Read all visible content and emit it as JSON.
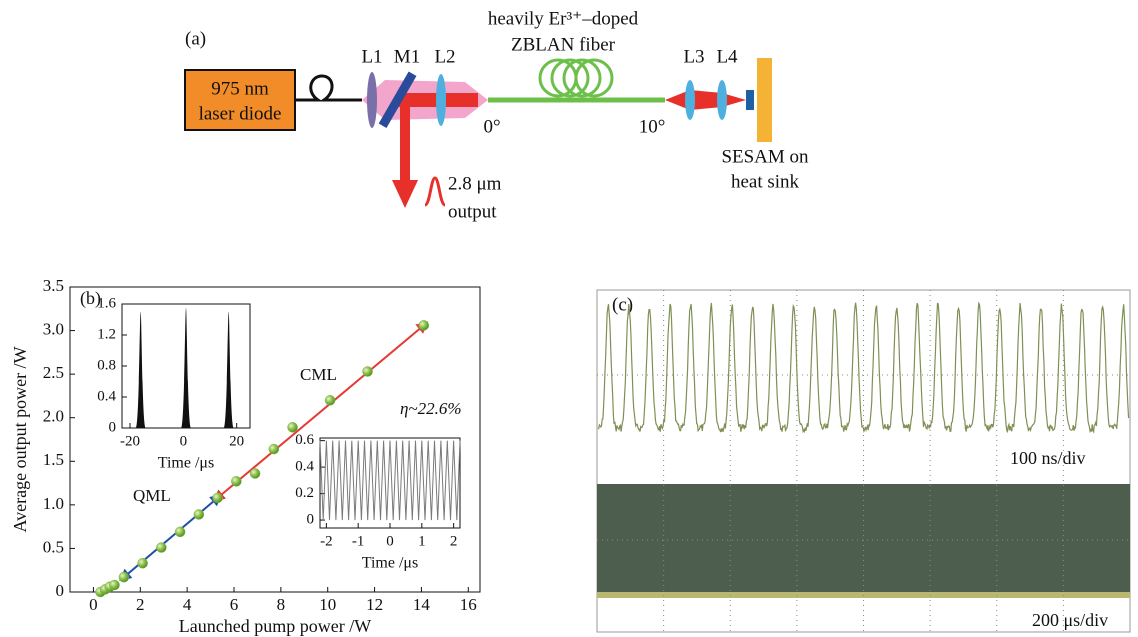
{
  "diagram": {
    "panel": "(a)",
    "source": [
      "975 nm",
      "laser diode"
    ],
    "lenses": [
      "L1",
      "M1",
      "L2",
      "L3",
      "L4"
    ],
    "fiber": [
      "heavily Er³⁺–doped",
      "ZBLAN fiber"
    ],
    "angles": [
      "0°",
      "10°"
    ],
    "output": [
      "2.8 μm",
      "output"
    ],
    "sesam": [
      "SESAM on",
      "heat sink"
    ]
  },
  "chart_data": [
    {
      "type": "scatter",
      "panel": "(b)",
      "x_label": "Launched pump power /W",
      "y_label": "Average output power /W",
      "annotations": [
        "CML",
        "QML",
        "η~22.6%"
      ],
      "x": [
        0.3,
        0.5,
        0.7,
        0.9,
        1.3,
        2.1,
        2.9,
        3.7,
        4.5,
        5.3,
        6.1,
        6.9,
        7.7,
        8.5,
        10.1,
        11.7,
        14.1
      ],
      "values": [
        0.0,
        0.03,
        0.06,
        0.08,
        0.17,
        0.33,
        0.51,
        0.69,
        0.89,
        1.08,
        1.27,
        1.36,
        1.64,
        1.89,
        2.2,
        2.53,
        3.06
      ],
      "color": "#7cb342",
      "fit_colors": [
        "#1f4fa8",
        "#e53935"
      ],
      "xlim": [
        -1,
        16.5
      ],
      "xticks": [
        0,
        2,
        4,
        6,
        8,
        10,
        12,
        14,
        16
      ],
      "ylim": [
        0,
        3.5
      ],
      "yticks": [
        0,
        0.5,
        {
          "value": 1,
          "label": "1.0"
        },
        1.5,
        {
          "value": 2,
          "label": "2.0"
        },
        2.5,
        {
          "value": 3,
          "label": "3.0"
        },
        3.5
      ]
    },
    {
      "type": "pulses",
      "x_label": "Time /μs",
      "x": [
        -16,
        1,
        17
      ],
      "values": [
        1.5,
        1.55,
        1.5
      ],
      "color": "#111111",
      "xlim": [
        -23,
        25
      ],
      "xticks": [
        -20,
        0,
        20
      ],
      "ylim": [
        0,
        1.6
      ],
      "yticks": [
        0,
        0.4,
        0.8,
        1.2,
        1.6
      ]
    },
    {
      "type": "line",
      "x_label": "Time /μs",
      "color": "#7a7a7a",
      "x": [
        -2.2,
        -2.1,
        -2.0,
        -1.9,
        -1.8,
        -1.7,
        -1.6,
        -1.5,
        -1.4,
        -1.3,
        -1.2,
        -1.1,
        -1.0,
        -0.9,
        -0.8,
        -0.7,
        -0.6,
        -0.5,
        -0.4,
        -0.3,
        -0.2,
        -0.1,
        0.0,
        0.1,
        0.2,
        0.3,
        0.4,
        0.5,
        0.6,
        0.7,
        0.8,
        0.9,
        1.0,
        1.1,
        1.2,
        1.3,
        1.4,
        1.5,
        1.6,
        1.7,
        1.8,
        1.9,
        2.0,
        2.1,
        2.2
      ],
      "values": [
        0.6,
        0.0,
        0.6,
        0.0,
        0.6,
        0.0,
        0.6,
        0.0,
        0.6,
        0.0,
        0.6,
        0.0,
        0.6,
        0.0,
        0.6,
        0.0,
        0.6,
        0.0,
        0.6,
        0.0,
        0.6,
        0.0,
        0.6,
        0.0,
        0.6,
        0.0,
        0.6,
        0.0,
        0.6,
        0.0,
        0.6,
        0.0,
        0.6,
        0.0,
        0.6,
        0.0,
        0.6,
        0.0,
        0.6,
        0.0,
        0.6,
        0.0,
        0.6,
        0.0,
        0.6
      ],
      "xlim": [
        -2.2,
        2.2
      ],
      "xticks": [
        -2,
        -1,
        0,
        1,
        2
      ],
      "ylim": [
        -0.06,
        0.62
      ],
      "yticks": [
        0,
        0.2,
        0.4,
        0.6
      ]
    }
  ],
  "scope": {
    "panel": "(c)",
    "top_scale": "100 ns/div",
    "bottom_scale": "200 μs/div"
  }
}
